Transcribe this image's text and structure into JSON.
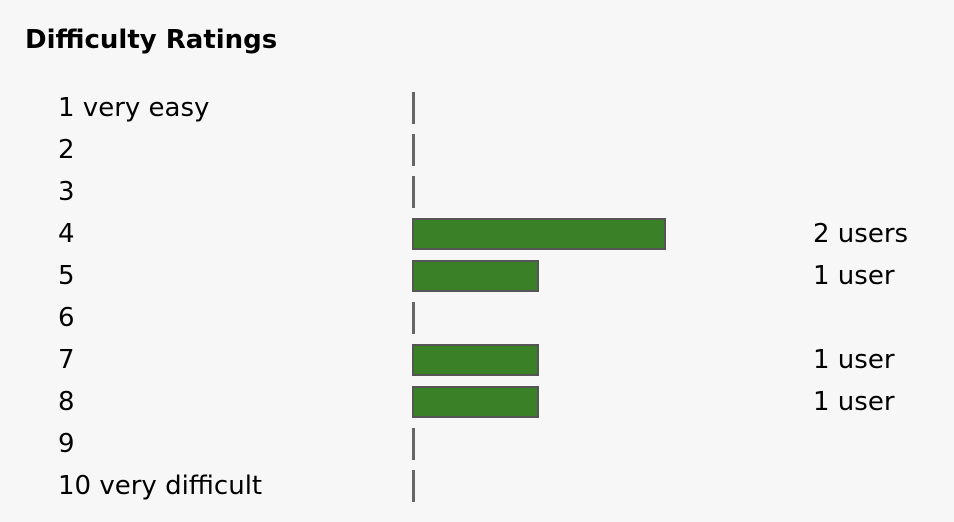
{
  "chart_data": {
    "type": "bar",
    "orientation": "horizontal",
    "title": "Difficulty Ratings",
    "categories": [
      "1 very easy",
      "2",
      "3",
      "4",
      "5",
      "6",
      "7",
      "8",
      "9",
      "10 very difficult"
    ],
    "values": [
      0,
      0,
      0,
      2,
      1,
      0,
      1,
      1,
      0,
      0
    ],
    "value_labels": [
      "",
      "",
      "",
      "2 users",
      "1 user",
      "",
      "1 user",
      "1 user",
      "",
      ""
    ],
    "xlim": [
      0,
      2
    ],
    "xlabel": "",
    "ylabel": "",
    "grid": false,
    "legend": "none",
    "colors": {
      "bar": "#3a8026",
      "bar_border": "#555555",
      "baseline": "#666666",
      "background": "#f7f7f7"
    }
  }
}
